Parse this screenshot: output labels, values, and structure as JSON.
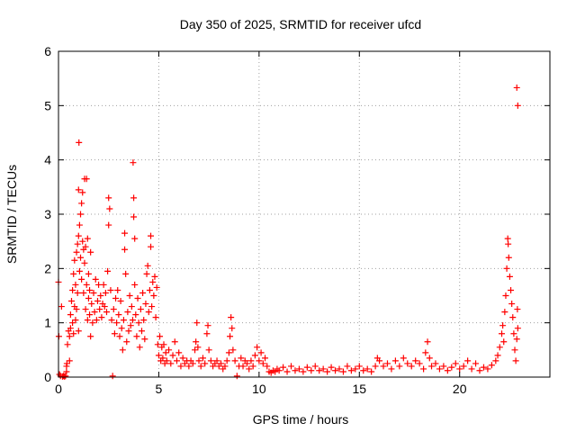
{
  "chart_data": {
    "type": "scatter",
    "title": "Day 350 of 2025, SRMTID for receiver ufcd",
    "xlabel": "GPS time / hours",
    "ylabel": "SRMTID / TECUs",
    "xlim": [
      0,
      24.5
    ],
    "ylim": [
      0,
      6
    ],
    "xticks": [
      0,
      5,
      10,
      15,
      20
    ],
    "yticks": [
      0,
      1,
      2,
      3,
      4,
      5,
      6
    ],
    "grid": true,
    "marker": "+",
    "series": [
      {
        "name": "SRMTID",
        "color": "#ff0000",
        "points": [
          [
            0.0,
            1.75
          ],
          [
            0.02,
            0.75
          ],
          [
            0.05,
            0.05
          ],
          [
            0.1,
            0.02
          ],
          [
            0.15,
            1.3
          ],
          [
            0.2,
            0.01
          ],
          [
            0.25,
            0.02
          ],
          [
            0.3,
            0.01
          ],
          [
            0.35,
            0.02
          ],
          [
            0.4,
            0.1
          ],
          [
            0.4,
            0.2
          ],
          [
            0.42,
            0.25
          ],
          [
            0.45,
            0.6
          ],
          [
            0.5,
            0.85
          ],
          [
            0.55,
            0.3
          ],
          [
            0.55,
            0.75
          ],
          [
            0.6,
            0.9
          ],
          [
            0.6,
            1.15
          ],
          [
            0.65,
            1.4
          ],
          [
            0.7,
            1.0
          ],
          [
            0.7,
            1.6
          ],
          [
            0.75,
            1.9
          ],
          [
            0.75,
            0.8
          ],
          [
            0.8,
            2.15
          ],
          [
            0.8,
            1.3
          ],
          [
            0.85,
            1.05
          ],
          [
            0.85,
            1.7
          ],
          [
            0.9,
            2.3
          ],
          [
            0.9,
            1.25
          ],
          [
            0.95,
            2.45
          ],
          [
            0.95,
            1.55
          ],
          [
            1.0,
            2.6
          ],
          [
            1.0,
            0.85
          ],
          [
            1.0,
            3.45
          ],
          [
            1.02,
            4.32
          ],
          [
            1.05,
            2.8
          ],
          [
            1.05,
            1.95
          ],
          [
            1.1,
            3.0
          ],
          [
            1.1,
            2.2
          ],
          [
            1.15,
            3.2
          ],
          [
            1.15,
            1.8
          ],
          [
            1.2,
            3.4
          ],
          [
            1.2,
            2.5
          ],
          [
            1.25,
            2.35
          ],
          [
            1.25,
            1.55
          ],
          [
            1.3,
            3.65
          ],
          [
            1.3,
            2.1
          ],
          [
            1.35,
            2.4
          ],
          [
            1.35,
            1.25
          ],
          [
            1.4,
            3.65
          ],
          [
            1.4,
            1.7
          ],
          [
            1.45,
            2.55
          ],
          [
            1.45,
            1.05
          ],
          [
            1.5,
            1.45
          ],
          [
            1.5,
            1.9
          ],
          [
            1.55,
            1.15
          ],
          [
            1.55,
            1.6
          ],
          [
            1.6,
            2.3
          ],
          [
            1.6,
            0.75
          ],
          [
            1.65,
            1.35
          ],
          [
            1.7,
            1.0
          ],
          [
            1.75,
            1.55
          ],
          [
            1.8,
            1.2
          ],
          [
            1.85,
            1.8
          ],
          [
            1.9,
            1.05
          ],
          [
            1.95,
            1.4
          ],
          [
            2.0,
            1.7
          ],
          [
            2.05,
            1.25
          ],
          [
            2.1,
            1.5
          ],
          [
            2.15,
            1.1
          ],
          [
            2.2,
            1.35
          ],
          [
            2.25,
            1.7
          ],
          [
            2.3,
            1.3
          ],
          [
            2.35,
            1.55
          ],
          [
            2.4,
            1.2
          ],
          [
            2.45,
            1.95
          ],
          [
            2.5,
            2.8
          ],
          [
            2.5,
            3.3
          ],
          [
            2.55,
            3.1
          ],
          [
            2.6,
            1.6
          ],
          [
            2.65,
            1.05
          ],
          [
            2.7,
            0.02
          ],
          [
            2.75,
            1.25
          ],
          [
            2.8,
            0.8
          ],
          [
            2.85,
            1.45
          ],
          [
            2.9,
            1.0
          ],
          [
            2.95,
            1.6
          ],
          [
            3.0,
            1.15
          ],
          [
            3.05,
            0.75
          ],
          [
            3.1,
            1.4
          ],
          [
            3.15,
            0.9
          ],
          [
            3.2,
            0.5
          ],
          [
            3.25,
            1.05
          ],
          [
            3.3,
            2.35
          ],
          [
            3.3,
            2.65
          ],
          [
            3.35,
            1.9
          ],
          [
            3.4,
            0.65
          ],
          [
            3.45,
            1.2
          ],
          [
            3.5,
            0.85
          ],
          [
            3.55,
            1.5
          ],
          [
            3.6,
            0.95
          ],
          [
            3.65,
            1.3
          ],
          [
            3.7,
            1.05
          ],
          [
            3.72,
            3.95
          ],
          [
            3.75,
            3.3
          ],
          [
            3.75,
            2.95
          ],
          [
            3.8,
            2.55
          ],
          [
            3.8,
            1.7
          ],
          [
            3.85,
            1.15
          ],
          [
            3.9,
            0.75
          ],
          [
            3.95,
            1.45
          ],
          [
            4.0,
            1.0
          ],
          [
            4.05,
            0.55
          ],
          [
            4.1,
            1.25
          ],
          [
            4.15,
            0.85
          ],
          [
            4.2,
            1.55
          ],
          [
            4.25,
            1.05
          ],
          [
            4.3,
            0.7
          ],
          [
            4.35,
            1.35
          ],
          [
            4.4,
            1.9
          ],
          [
            4.45,
            2.05
          ],
          [
            4.5,
            1.2
          ],
          [
            4.55,
            1.6
          ],
          [
            4.6,
            2.4
          ],
          [
            4.6,
            2.6
          ],
          [
            4.65,
            1.3
          ],
          [
            4.7,
            1.75
          ],
          [
            4.75,
            1.5
          ],
          [
            4.8,
            1.85
          ],
          [
            4.85,
            1.1
          ],
          [
            4.9,
            1.65
          ],
          [
            4.95,
            0.6
          ],
          [
            5.0,
            0.4
          ],
          [
            5.05,
            0.75
          ],
          [
            5.1,
            0.3
          ],
          [
            5.15,
            0.55
          ],
          [
            5.2,
            0.35
          ],
          [
            5.25,
            0.6
          ],
          [
            5.3,
            0.25
          ],
          [
            5.35,
            0.45
          ],
          [
            5.4,
            0.3
          ],
          [
            5.5,
            0.5
          ],
          [
            5.6,
            0.25
          ],
          [
            5.7,
            0.4
          ],
          [
            5.8,
            0.65
          ],
          [
            5.9,
            0.3
          ],
          [
            6.0,
            0.45
          ],
          [
            6.1,
            0.2
          ],
          [
            6.2,
            0.35
          ],
          [
            6.3,
            0.25
          ],
          [
            6.4,
            0.3
          ],
          [
            6.5,
            0.2
          ],
          [
            6.6,
            0.3
          ],
          [
            6.7,
            0.25
          ],
          [
            6.8,
            0.5
          ],
          [
            6.85,
            0.65
          ],
          [
            6.9,
            1.0
          ],
          [
            6.95,
            0.55
          ],
          [
            7.0,
            0.3
          ],
          [
            7.1,
            0.2
          ],
          [
            7.2,
            0.35
          ],
          [
            7.3,
            0.25
          ],
          [
            7.4,
            0.8
          ],
          [
            7.45,
            0.95
          ],
          [
            7.5,
            0.5
          ],
          [
            7.6,
            0.3
          ],
          [
            7.7,
            0.2
          ],
          [
            7.8,
            0.25
          ],
          [
            7.9,
            0.3
          ],
          [
            8.0,
            0.2
          ],
          [
            8.1,
            0.25
          ],
          [
            8.2,
            0.15
          ],
          [
            8.3,
            0.2
          ],
          [
            8.4,
            0.3
          ],
          [
            8.5,
            0.45
          ],
          [
            8.55,
            0.75
          ],
          [
            8.6,
            1.1
          ],
          [
            8.65,
            0.9
          ],
          [
            8.7,
            0.5
          ],
          [
            8.8,
            0.3
          ],
          [
            8.9,
            0.02
          ],
          [
            9.0,
            0.2
          ],
          [
            9.1,
            0.35
          ],
          [
            9.2,
            0.2
          ],
          [
            9.3,
            0.3
          ],
          [
            9.4,
            0.25
          ],
          [
            9.5,
            0.15
          ],
          [
            9.6,
            0.3
          ],
          [
            9.7,
            0.2
          ],
          [
            9.8,
            0.4
          ],
          [
            9.9,
            0.55
          ],
          [
            10.0,
            0.3
          ],
          [
            10.1,
            0.45
          ],
          [
            10.2,
            0.25
          ],
          [
            10.3,
            0.35
          ],
          [
            10.4,
            0.2
          ],
          [
            10.5,
            0.1
          ],
          [
            10.6,
            0.08
          ],
          [
            10.7,
            0.12
          ],
          [
            10.8,
            0.1
          ],
          [
            10.9,
            0.15
          ],
          [
            11.0,
            0.12
          ],
          [
            11.2,
            0.18
          ],
          [
            11.4,
            0.1
          ],
          [
            11.6,
            0.2
          ],
          [
            11.8,
            0.12
          ],
          [
            12.0,
            0.15
          ],
          [
            12.2,
            0.1
          ],
          [
            12.4,
            0.18
          ],
          [
            12.6,
            0.12
          ],
          [
            12.8,
            0.2
          ],
          [
            13.0,
            0.12
          ],
          [
            13.2,
            0.15
          ],
          [
            13.4,
            0.1
          ],
          [
            13.6,
            0.18
          ],
          [
            13.8,
            0.12
          ],
          [
            14.0,
            0.15
          ],
          [
            14.2,
            0.1
          ],
          [
            14.4,
            0.2
          ],
          [
            14.6,
            0.12
          ],
          [
            14.8,
            0.15
          ],
          [
            15.0,
            0.2
          ],
          [
            15.2,
            0.12
          ],
          [
            15.4,
            0.15
          ],
          [
            15.6,
            0.1
          ],
          [
            15.8,
            0.2
          ],
          [
            15.9,
            0.35
          ],
          [
            16.0,
            0.3
          ],
          [
            16.2,
            0.2
          ],
          [
            16.4,
            0.25
          ],
          [
            16.6,
            0.15
          ],
          [
            16.8,
            0.3
          ],
          [
            17.0,
            0.2
          ],
          [
            17.2,
            0.35
          ],
          [
            17.4,
            0.25
          ],
          [
            17.6,
            0.2
          ],
          [
            17.8,
            0.3
          ],
          [
            18.0,
            0.25
          ],
          [
            18.2,
            0.15
          ],
          [
            18.3,
            0.45
          ],
          [
            18.4,
            0.65
          ],
          [
            18.5,
            0.35
          ],
          [
            18.6,
            0.2
          ],
          [
            18.8,
            0.25
          ],
          [
            19.0,
            0.15
          ],
          [
            19.2,
            0.2
          ],
          [
            19.4,
            0.12
          ],
          [
            19.6,
            0.18
          ],
          [
            19.8,
            0.25
          ],
          [
            20.0,
            0.15
          ],
          [
            20.2,
            0.2
          ],
          [
            20.4,
            0.3
          ],
          [
            20.6,
            0.15
          ],
          [
            20.8,
            0.25
          ],
          [
            21.0,
            0.12
          ],
          [
            21.2,
            0.18
          ],
          [
            21.4,
            0.15
          ],
          [
            21.6,
            0.22
          ],
          [
            21.8,
            0.3
          ],
          [
            21.9,
            0.4
          ],
          [
            22.0,
            0.55
          ],
          [
            22.1,
            0.8
          ],
          [
            22.15,
            0.95
          ],
          [
            22.2,
            0.65
          ],
          [
            22.25,
            1.2
          ],
          [
            22.3,
            1.5
          ],
          [
            22.35,
            2.0
          ],
          [
            22.4,
            2.55
          ],
          [
            22.42,
            2.45
          ],
          [
            22.45,
            2.2
          ],
          [
            22.5,
            1.85
          ],
          [
            22.55,
            1.6
          ],
          [
            22.6,
            1.35
          ],
          [
            22.65,
            1.1
          ],
          [
            22.7,
            0.8
          ],
          [
            22.75,
            0.5
          ],
          [
            22.8,
            0.3
          ],
          [
            22.85,
            0.7
          ],
          [
            22.88,
            1.25
          ],
          [
            22.9,
            0.9
          ],
          [
            22.85,
            5.33
          ],
          [
            22.9,
            5.0
          ]
        ]
      }
    ]
  }
}
